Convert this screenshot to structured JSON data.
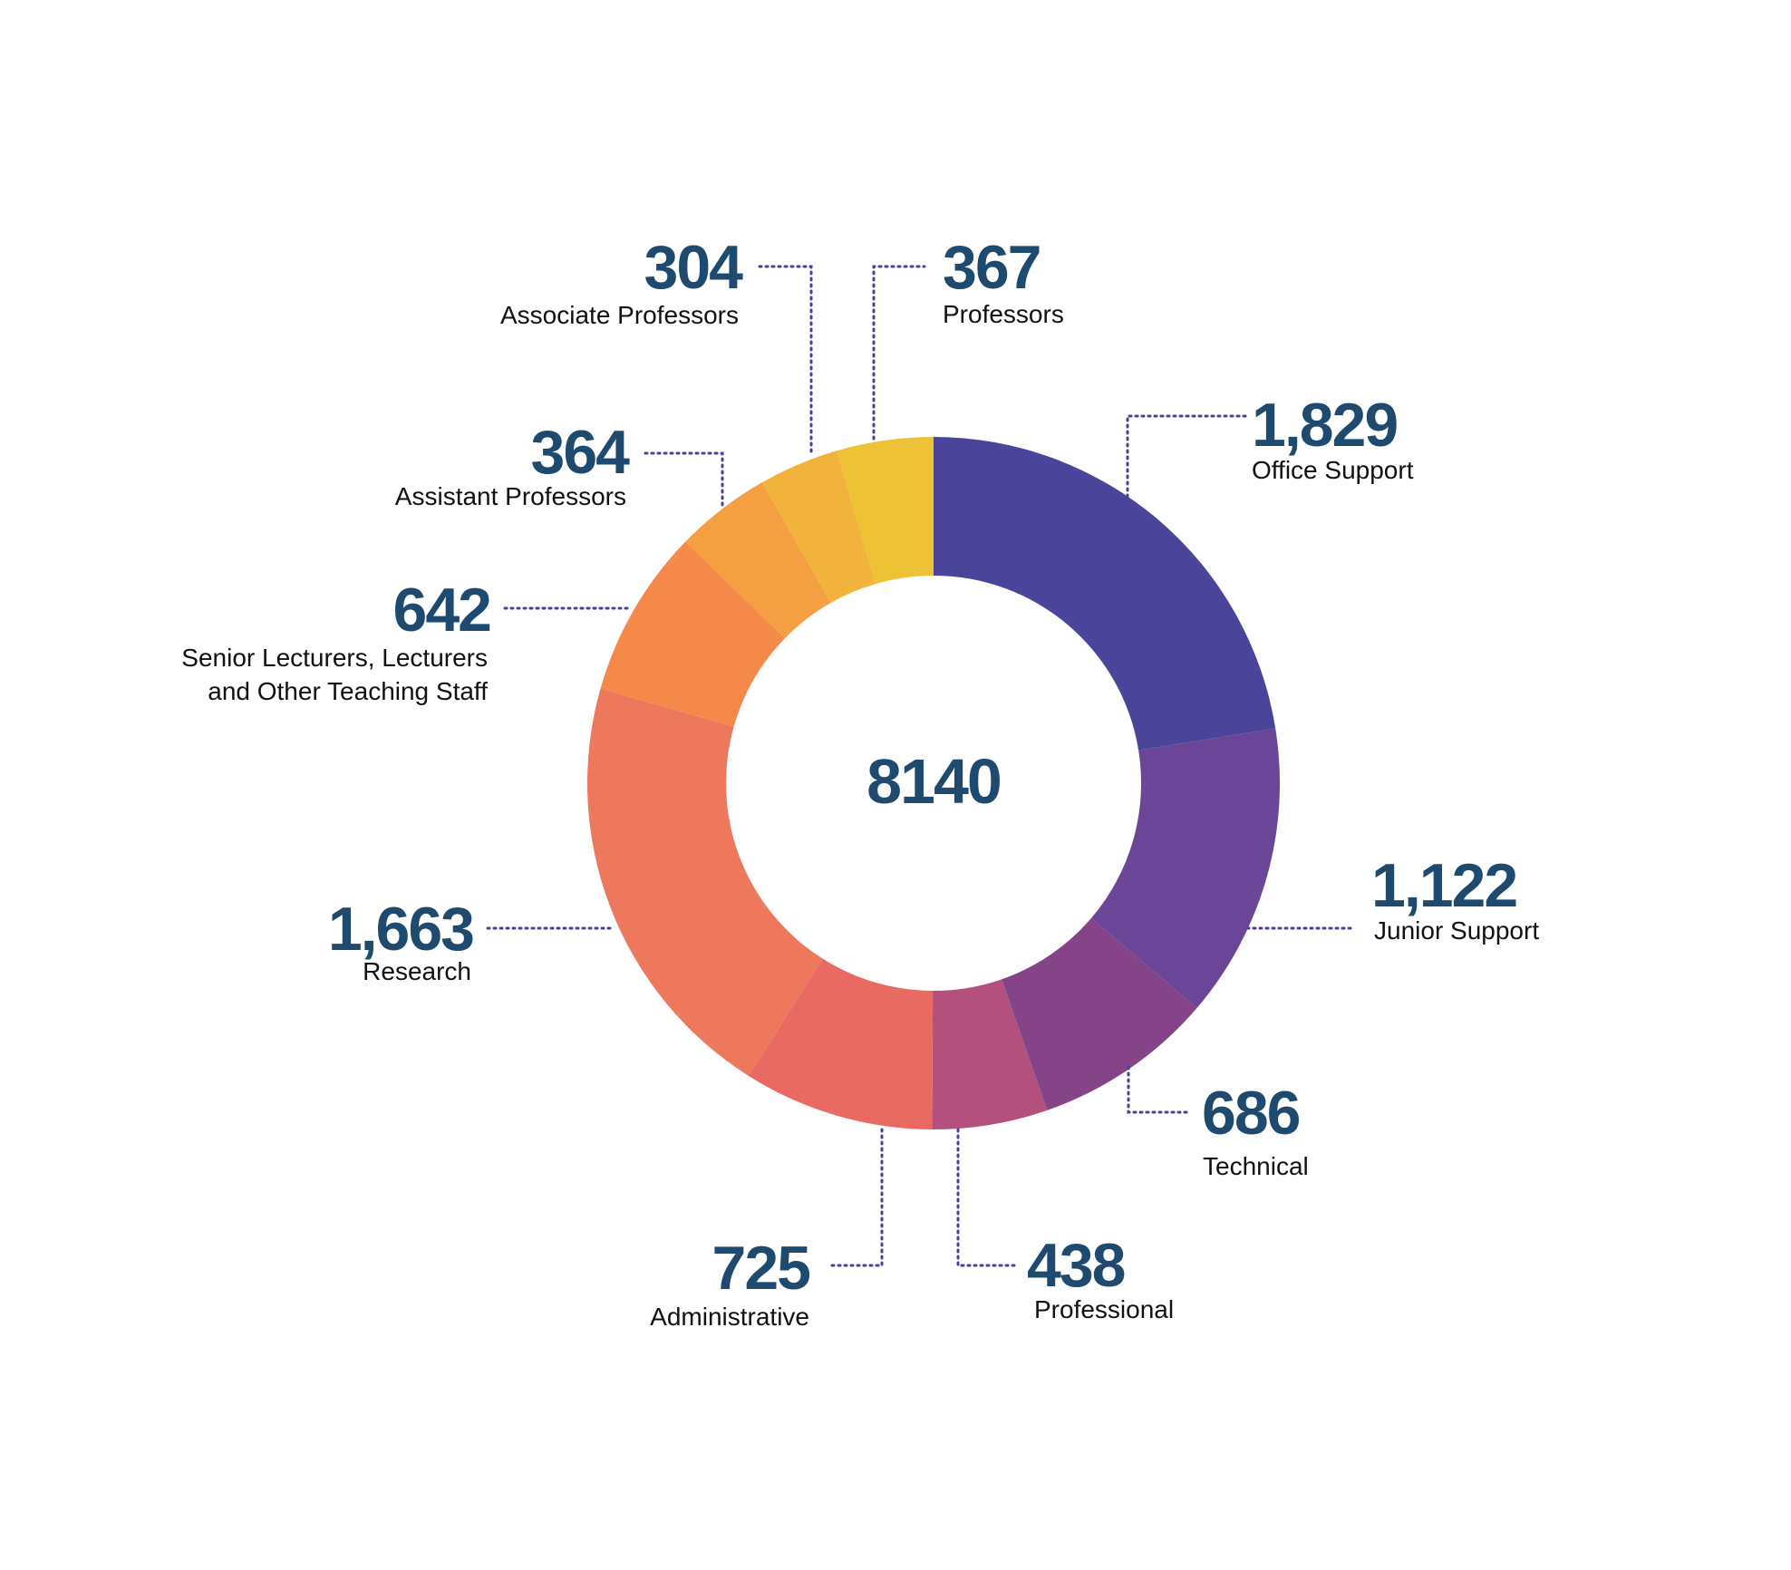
{
  "chart_data": {
    "type": "donut",
    "center_total": "8140",
    "colors": {
      "value_text": "#1f4a6f",
      "label_text": "#111111",
      "leader": "#4a3f9a"
    },
    "slices": [
      {
        "value": 1829,
        "value_label": "1,829",
        "label": [
          "Office Support"
        ],
        "color": "#4b449b"
      },
      {
        "value": 1122,
        "value_label": "1,122",
        "label": [
          "Junior Support"
        ],
        "color": "#6b4698"
      },
      {
        "value": 686,
        "value_label": "686",
        "label": [
          "Technical"
        ],
        "color": "#854487"
      },
      {
        "value": 438,
        "value_label": "438",
        "label": [
          "Professional"
        ],
        "color": "#b4507e"
      },
      {
        "value": 725,
        "value_label": "725",
        "label": [
          "Administrative"
        ],
        "color": "#e86a62"
      },
      {
        "value": 1663,
        "value_label": "1,663",
        "label": [
          "Research"
        ],
        "color": "#ed785b"
      },
      {
        "value": 642,
        "value_label": "642",
        "label": [
          "Senior Lecturers, Lecturers",
          "and Other Teaching Staff"
        ],
        "color": "#f4894a"
      },
      {
        "value": 364,
        "value_label": "364",
        "label": [
          "Assistant Professors"
        ],
        "color": "#f49f42"
      },
      {
        "value": 304,
        "value_label": "304",
        "label": [
          "Associate Professors"
        ],
        "color": "#f2b33c"
      },
      {
        "value": 367,
        "value_label": "367",
        "label": [
          "Professors"
        ],
        "color": "#edc234"
      }
    ]
  }
}
